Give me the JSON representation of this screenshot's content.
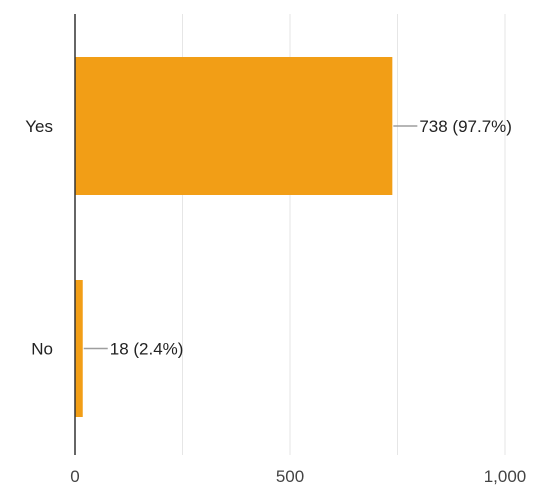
{
  "chart_data": {
    "type": "bar",
    "orientation": "horizontal",
    "title": "",
    "xlabel": "",
    "ylabel": "",
    "categories": [
      "Yes",
      "No"
    ],
    "values": [
      738,
      18
    ],
    "data_labels": [
      "738 (97.7%)",
      "18 (2.4%)"
    ],
    "xlim": [
      0,
      1000
    ],
    "xticks": [
      0,
      500,
      1000
    ],
    "xtick_labels": [
      "0",
      "500",
      "1,000"
    ],
    "grid": true,
    "legend": "none",
    "colors": {
      "bar": "#f29e16",
      "grid": "#e6e6e6",
      "axis": "#333333",
      "leader": "#9e9e9e"
    }
  }
}
